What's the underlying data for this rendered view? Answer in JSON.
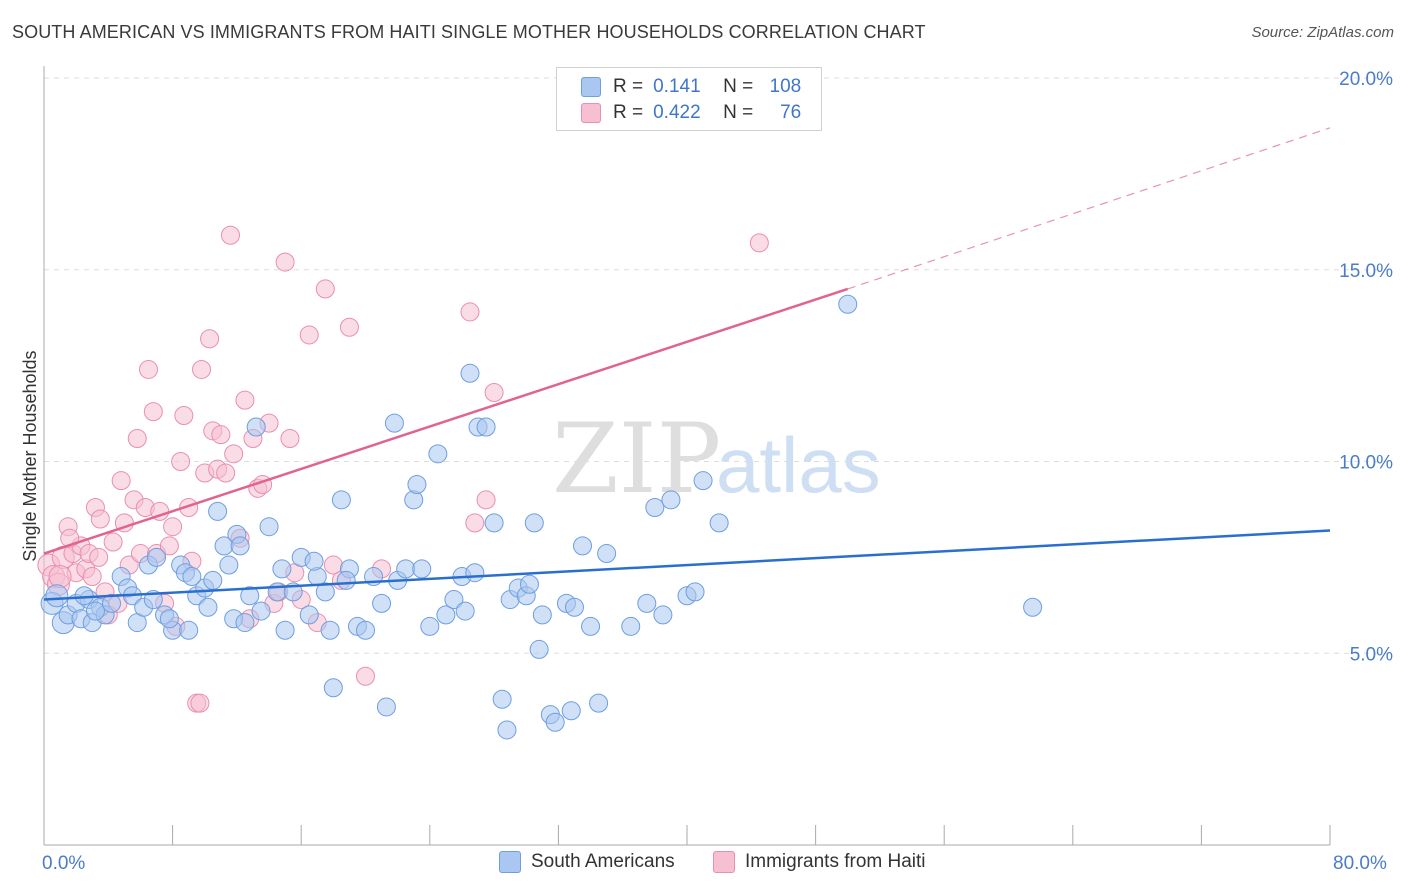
{
  "title": "SOUTH AMERICAN VS IMMIGRANTS FROM HAITI SINGLE MOTHER HOUSEHOLDS CORRELATION CHART",
  "source": "Source: ZipAtlas.com",
  "watermark": {
    "zip": "ZIP",
    "atlas": "atlas"
  },
  "legend": {
    "rows": [
      {
        "r_label": "R =",
        "r_value": "0.141",
        "n_label": "N =",
        "n_value": "108"
      },
      {
        "r_label": "R =",
        "r_value": "0.422",
        "n_label": "N =",
        "n_value": "76"
      }
    ]
  },
  "bottom_legend": [
    "South Americans",
    "Immigrants from Haiti"
  ],
  "x_ticks": {
    "left": "0.0%",
    "right": "80.0%"
  },
  "colors": {
    "blue_fill": "#a9c7f0",
    "blue_stroke": "#6e9fdf",
    "blue_line": "#2a6fcf",
    "pink_fill": "#f6bfd2",
    "pink_stroke": "#e98fb0",
    "pink_line": "#e0648f",
    "tick_text": "#4a7cc9",
    "grid": "#dddddd"
  },
  "chart_data": {
    "type": "scatter",
    "title": "SOUTH AMERICAN VS IMMIGRANTS FROM HAITI SINGLE MOTHER HOUSEHOLDS CORRELATION CHART",
    "xlabel": "",
    "ylabel": "Single Mother Households",
    "xlim": [
      0,
      80
    ],
    "ylim": [
      0,
      20
    ],
    "y_ticks": [
      5,
      10,
      15,
      20
    ],
    "y_tick_labels": [
      "5.0%",
      "10.0%",
      "15.0%",
      "20.0%"
    ],
    "grid": true,
    "legend_position": "top-center",
    "series": [
      {
        "name": "South Americans",
        "color": "#6e9fdf",
        "r": 0.141,
        "n": 108,
        "trend": {
          "x": [
            0,
            80
          ],
          "y": [
            6.4,
            8.2
          ]
        },
        "points": [
          [
            0.5,
            6.3
          ],
          [
            0.8,
            6.5
          ],
          [
            1.2,
            5.8
          ],
          [
            1.5,
            6.0
          ],
          [
            2.0,
            6.3
          ],
          [
            2.3,
            5.9
          ],
          [
            2.8,
            6.4
          ],
          [
            3.0,
            5.8
          ],
          [
            3.5,
            6.2
          ],
          [
            3.8,
            6.0
          ],
          [
            4.2,
            6.3
          ],
          [
            4.8,
            7.0
          ],
          [
            5.2,
            6.7
          ],
          [
            5.5,
            6.5
          ],
          [
            5.8,
            5.8
          ],
          [
            6.2,
            6.2
          ],
          [
            6.5,
            7.3
          ],
          [
            7.0,
            7.5
          ],
          [
            7.5,
            6.0
          ],
          [
            8.0,
            5.6
          ],
          [
            8.5,
            7.3
          ],
          [
            8.8,
            7.1
          ],
          [
            9.0,
            5.6
          ],
          [
            9.5,
            6.5
          ],
          [
            10.0,
            6.7
          ],
          [
            10.2,
            6.2
          ],
          [
            10.5,
            6.9
          ],
          [
            10.8,
            8.7
          ],
          [
            11.2,
            7.8
          ],
          [
            11.5,
            7.3
          ],
          [
            11.8,
            5.9
          ],
          [
            12.0,
            8.1
          ],
          [
            12.2,
            7.8
          ],
          [
            12.8,
            6.5
          ],
          [
            13.2,
            10.9
          ],
          [
            13.5,
            6.1
          ],
          [
            14.0,
            8.3
          ],
          [
            14.5,
            6.6
          ],
          [
            14.8,
            7.2
          ],
          [
            15.0,
            5.6
          ],
          [
            15.5,
            6.6
          ],
          [
            16.0,
            7.5
          ],
          [
            16.5,
            6.0
          ],
          [
            17.0,
            7.0
          ],
          [
            17.5,
            6.6
          ],
          [
            17.8,
            5.6
          ],
          [
            18.0,
            4.1
          ],
          [
            18.5,
            9.0
          ],
          [
            19.0,
            7.2
          ],
          [
            19.5,
            5.7
          ],
          [
            20.0,
            5.6
          ],
          [
            20.5,
            7.0
          ],
          [
            21.0,
            6.3
          ],
          [
            21.3,
            3.6
          ],
          [
            21.8,
            11.0
          ],
          [
            22.0,
            6.9
          ],
          [
            22.5,
            7.2
          ],
          [
            23.0,
            9.0
          ],
          [
            23.2,
            9.4
          ],
          [
            23.5,
            7.2
          ],
          [
            24.0,
            5.7
          ],
          [
            24.5,
            10.2
          ],
          [
            25.0,
            6.0
          ],
          [
            25.5,
            6.4
          ],
          [
            26.0,
            7.0
          ],
          [
            26.5,
            12.3
          ],
          [
            26.8,
            7.1
          ],
          [
            27.0,
            10.9
          ],
          [
            27.5,
            10.9
          ],
          [
            28.0,
            8.4
          ],
          [
            28.5,
            3.8
          ],
          [
            28.8,
            3.0
          ],
          [
            29.0,
            6.4
          ],
          [
            29.5,
            6.7
          ],
          [
            30.0,
            6.5
          ],
          [
            30.5,
            8.4
          ],
          [
            30.8,
            5.1
          ],
          [
            31.0,
            6.0
          ],
          [
            31.5,
            3.4
          ],
          [
            31.8,
            3.2
          ],
          [
            32.5,
            6.3
          ],
          [
            32.8,
            3.5
          ],
          [
            33.0,
            6.2
          ],
          [
            33.5,
            7.8
          ],
          [
            34.0,
            5.7
          ],
          [
            34.5,
            3.7
          ],
          [
            35.0,
            7.6
          ],
          [
            36.5,
            5.7
          ],
          [
            37.5,
            6.3
          ],
          [
            38.0,
            8.8
          ],
          [
            38.5,
            6.0
          ],
          [
            39.0,
            9.0
          ],
          [
            40.0,
            6.5
          ],
          [
            40.5,
            6.6
          ],
          [
            41.0,
            9.5
          ],
          [
            42.0,
            8.4
          ],
          [
            61.5,
            6.2
          ],
          [
            50.0,
            14.1
          ],
          [
            2.5,
            6.5
          ],
          [
            6.8,
            6.4
          ],
          [
            9.2,
            7.0
          ],
          [
            12.5,
            5.8
          ],
          [
            16.8,
            7.4
          ],
          [
            18.8,
            6.9
          ],
          [
            26.2,
            6.1
          ],
          [
            30.2,
            6.8
          ],
          [
            3.2,
            6.1
          ],
          [
            7.8,
            5.9
          ]
        ]
      },
      {
        "name": "Immigrants from Haiti",
        "color": "#e98fb0",
        "r": 0.422,
        "n": 76,
        "trend": {
          "x": [
            0,
            50
          ],
          "y": [
            7.6,
            14.5
          ]
        },
        "trend_extension": {
          "x": [
            50,
            80
          ],
          "y": [
            14.5,
            18.7
          ]
        },
        "points": [
          [
            0.3,
            7.3
          ],
          [
            0.6,
            7.0
          ],
          [
            0.9,
            6.8
          ],
          [
            1.2,
            7.5
          ],
          [
            1.5,
            8.3
          ],
          [
            1.8,
            7.6
          ],
          [
            2.0,
            7.1
          ],
          [
            2.3,
            7.8
          ],
          [
            2.6,
            7.2
          ],
          [
            2.8,
            7.6
          ],
          [
            3.0,
            7.0
          ],
          [
            3.2,
            8.8
          ],
          [
            3.5,
            8.5
          ],
          [
            3.8,
            6.6
          ],
          [
            4.0,
            6.0
          ],
          [
            4.3,
            7.9
          ],
          [
            4.6,
            6.3
          ],
          [
            4.8,
            9.5
          ],
          [
            5.0,
            8.4
          ],
          [
            5.3,
            7.3
          ],
          [
            5.6,
            9.0
          ],
          [
            5.8,
            10.6
          ],
          [
            6.0,
            7.6
          ],
          [
            6.3,
            8.8
          ],
          [
            6.5,
            12.4
          ],
          [
            6.8,
            11.3
          ],
          [
            7.0,
            7.6
          ],
          [
            7.2,
            8.7
          ],
          [
            7.5,
            6.3
          ],
          [
            7.8,
            7.8
          ],
          [
            8.0,
            8.3
          ],
          [
            8.2,
            5.7
          ],
          [
            8.5,
            10.0
          ],
          [
            8.7,
            11.2
          ],
          [
            9.0,
            8.8
          ],
          [
            9.2,
            7.4
          ],
          [
            9.5,
            3.7
          ],
          [
            9.8,
            12.4
          ],
          [
            10.0,
            9.7
          ],
          [
            10.3,
            13.2
          ],
          [
            10.5,
            10.8
          ],
          [
            10.8,
            9.8
          ],
          [
            11.0,
            10.7
          ],
          [
            11.3,
            9.7
          ],
          [
            11.6,
            15.9
          ],
          [
            11.8,
            10.2
          ],
          [
            12.2,
            8.0
          ],
          [
            12.5,
            11.6
          ],
          [
            12.8,
            5.9
          ],
          [
            13.0,
            10.6
          ],
          [
            13.3,
            9.3
          ],
          [
            13.6,
            9.4
          ],
          [
            14.0,
            11.0
          ],
          [
            14.3,
            6.3
          ],
          [
            14.6,
            6.6
          ],
          [
            15.0,
            15.2
          ],
          [
            15.3,
            10.6
          ],
          [
            15.6,
            7.1
          ],
          [
            16.0,
            6.4
          ],
          [
            16.5,
            13.3
          ],
          [
            17.0,
            5.8
          ],
          [
            17.5,
            14.5
          ],
          [
            18.0,
            7.3
          ],
          [
            18.5,
            6.9
          ],
          [
            19.0,
            13.5
          ],
          [
            20.0,
            4.4
          ],
          [
            21.0,
            7.2
          ],
          [
            26.5,
            13.9
          ],
          [
            26.8,
            8.4
          ],
          [
            27.5,
            9.0
          ],
          [
            28.0,
            11.8
          ],
          [
            44.5,
            15.7
          ],
          [
            9.7,
            3.7
          ],
          [
            1.0,
            7.0
          ],
          [
            1.6,
            8.0
          ],
          [
            3.4,
            7.5
          ]
        ]
      }
    ]
  }
}
